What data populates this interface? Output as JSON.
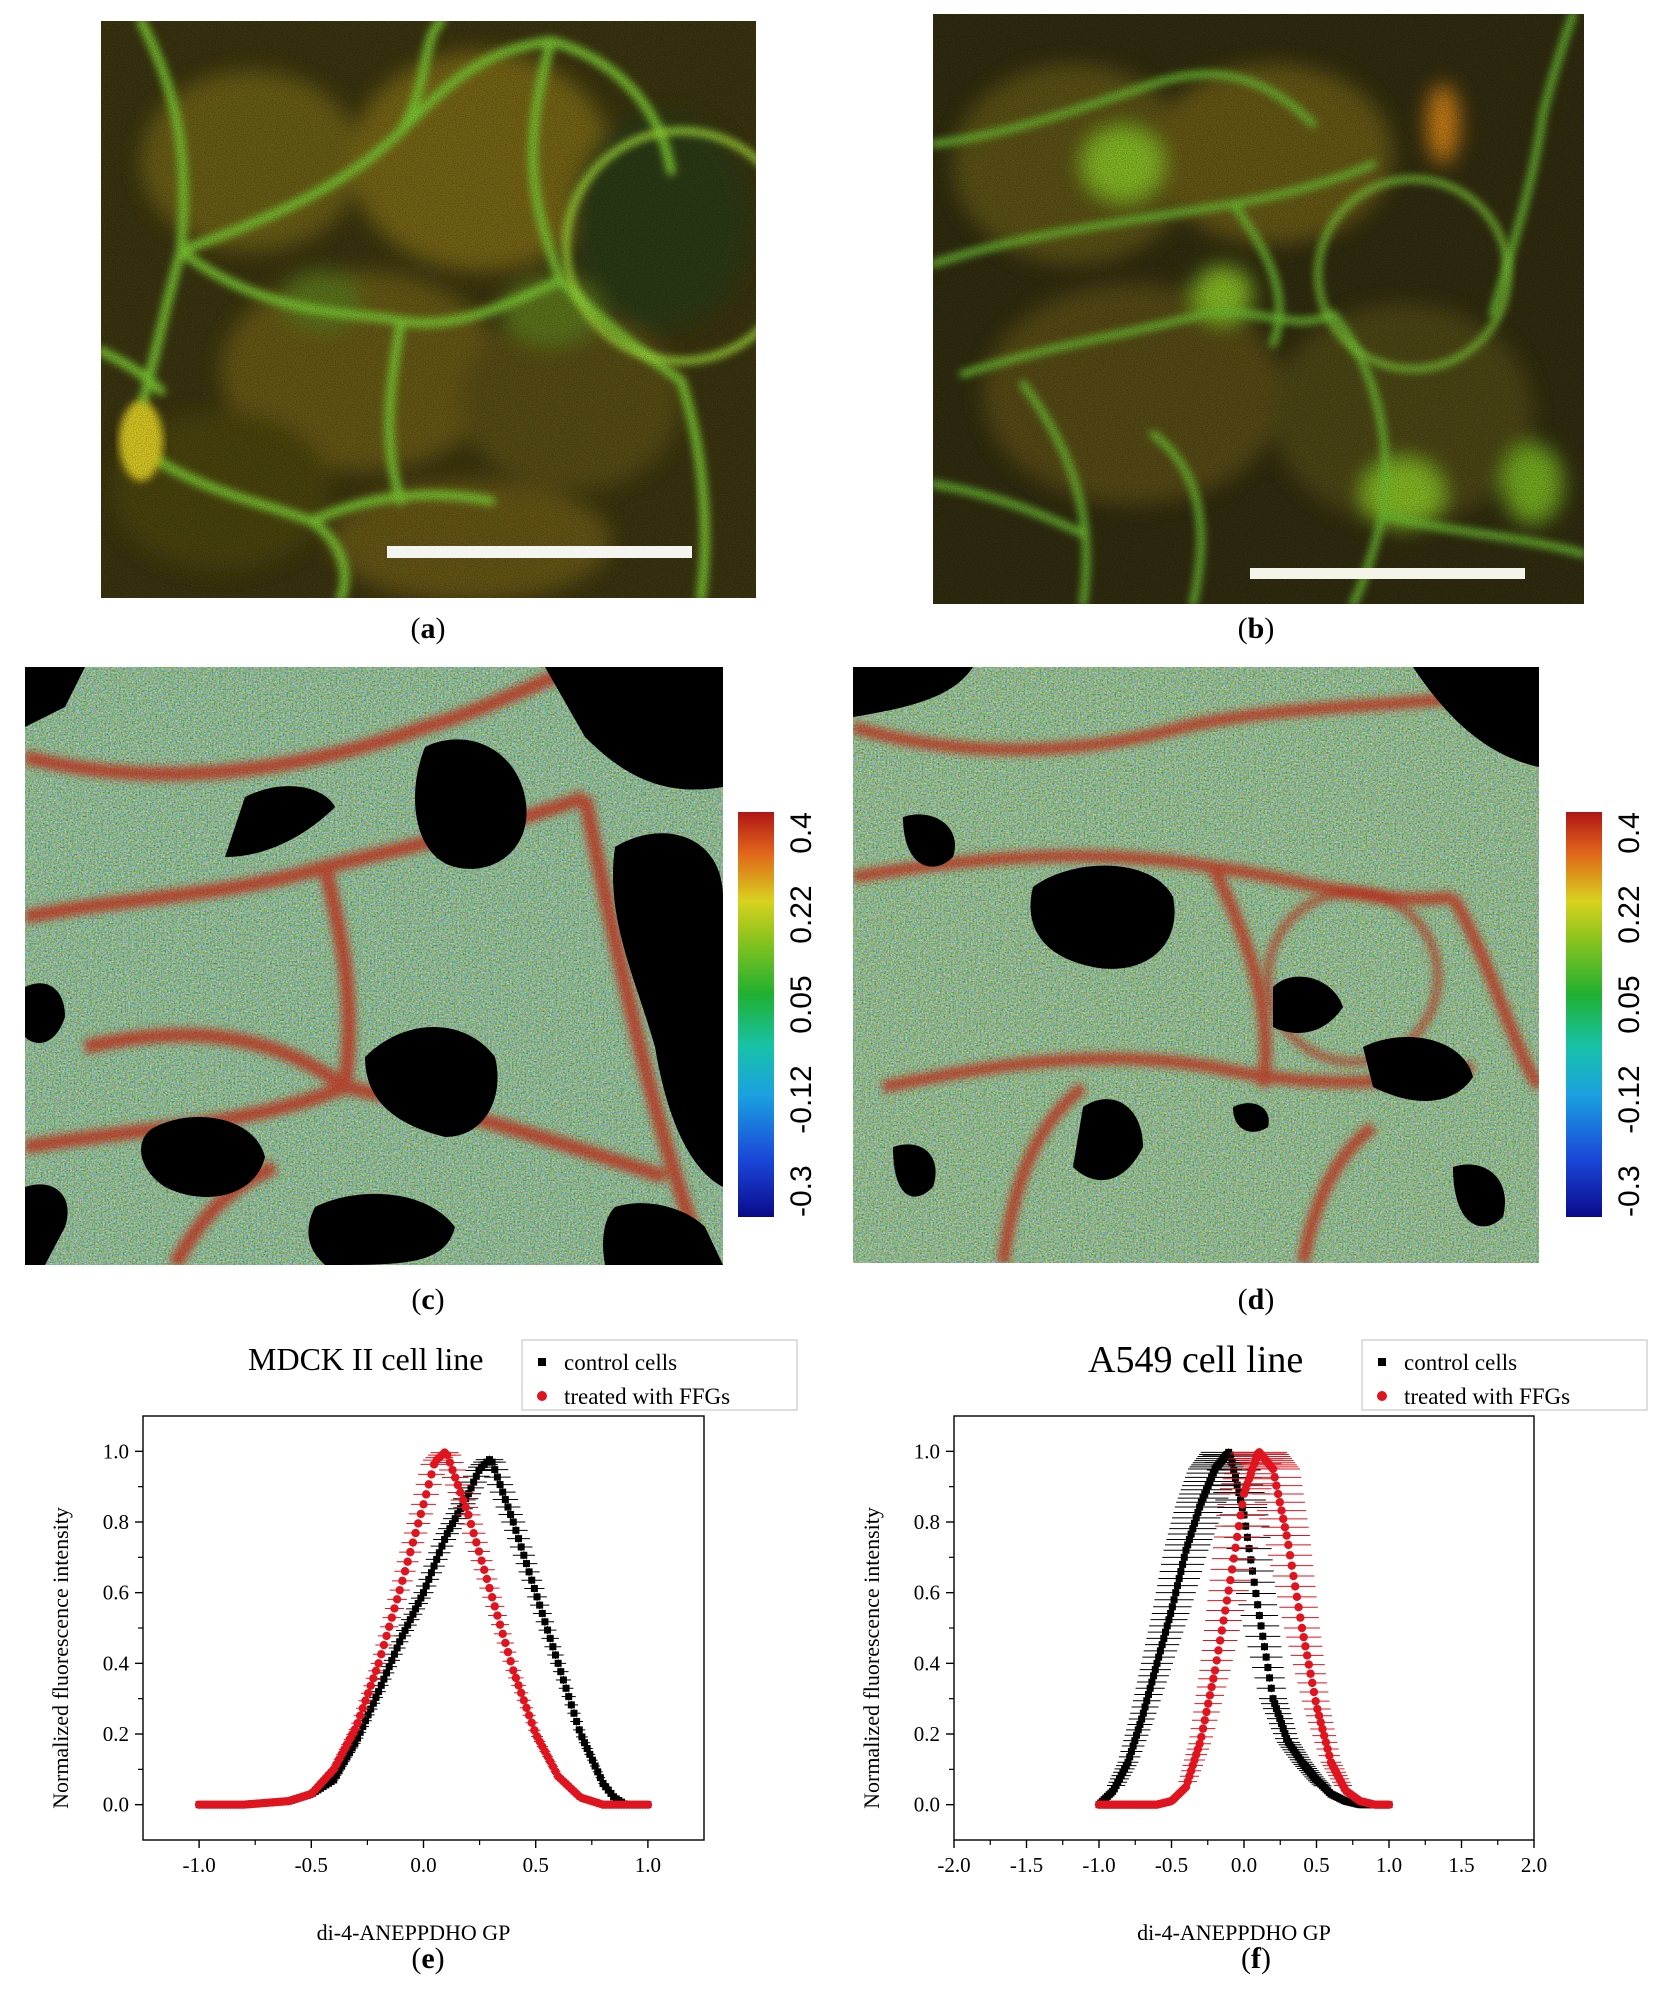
{
  "panels": {
    "a": {
      "label": "a"
    },
    "b": {
      "label": "b"
    },
    "c": {
      "label": "c"
    },
    "d": {
      "label": "d"
    },
    "e": {
      "label": "e"
    },
    "f": {
      "label": "f"
    }
  },
  "colorbar": {
    "ticks": [
      "-0.3",
      "-0.12",
      "0.05",
      "0.22",
      "0.4"
    ],
    "colors": [
      "#0a0a8c",
      "#1a46d8",
      "#18c2a8",
      "#20b030",
      "#d8d21e",
      "#e0641a",
      "#b01616"
    ]
  },
  "chart_data": [
    {
      "type": "scatter",
      "title": "MDCK II cell line",
      "xlabel": "di-4-ANEPPDHQ GP",
      "ylabel": "Normalized fluorescence intensity",
      "xlim": [
        -1.25,
        1.25
      ],
      "ylim": [
        -0.1,
        1.1
      ],
      "xticks": [
        "-1.0",
        "-0.5",
        "0.0",
        "0.5",
        "1.0"
      ],
      "yticks": [
        "0.0",
        "0.2",
        "0.4",
        "0.6",
        "0.8",
        "1.0"
      ],
      "legend_position": "top-right",
      "series": [
        {
          "name": "control cells",
          "color": "#000000",
          "marker": "square",
          "x": [
            -1.0,
            -0.8,
            -0.6,
            -0.5,
            -0.4,
            -0.3,
            -0.2,
            -0.1,
            0.0,
            0.1,
            0.2,
            0.25,
            0.3,
            0.4,
            0.5,
            0.6,
            0.7,
            0.8,
            0.85,
            0.9,
            1.0
          ],
          "y": [
            0.0,
            0.0,
            0.01,
            0.03,
            0.07,
            0.18,
            0.32,
            0.47,
            0.6,
            0.76,
            0.88,
            0.95,
            0.98,
            0.8,
            0.6,
            0.4,
            0.2,
            0.06,
            0.02,
            0.0,
            0.0
          ]
        },
        {
          "name": "treated with FFGs",
          "color": "#e0141e",
          "marker": "circle",
          "x": [
            -1.0,
            -0.8,
            -0.6,
            -0.5,
            -0.4,
            -0.3,
            -0.2,
            -0.1,
            0.0,
            0.05,
            0.1,
            0.2,
            0.3,
            0.4,
            0.5,
            0.6,
            0.7,
            0.8,
            0.9,
            1.0
          ],
          "y": [
            0.0,
            0.0,
            0.01,
            0.03,
            0.1,
            0.22,
            0.4,
            0.62,
            0.85,
            0.97,
            1.0,
            0.82,
            0.6,
            0.38,
            0.2,
            0.08,
            0.02,
            0.0,
            0.0,
            0.0
          ]
        }
      ]
    },
    {
      "type": "scatter",
      "title": "A549 cell line",
      "xlabel": "di-4-ANEPPDHQ GP",
      "ylabel": "Normalized fluorescence intensity",
      "xlim": [
        -2.0,
        2.0
      ],
      "ylim": [
        -0.1,
        1.1
      ],
      "xticks": [
        "-2.0",
        "-1.5",
        "-1.0",
        "-0.5",
        "0.0",
        "0.5",
        "1.0",
        "1.5",
        "2.0"
      ],
      "yticks": [
        "0.0",
        "0.2",
        "0.4",
        "0.6",
        "0.8",
        "1.0"
      ],
      "legend_position": "top-right",
      "series": [
        {
          "name": "control cells",
          "color": "#000000",
          "marker": "square",
          "x": [
            -1.0,
            -0.9,
            -0.8,
            -0.7,
            -0.6,
            -0.5,
            -0.4,
            -0.3,
            -0.2,
            -0.1,
            0.0,
            0.1,
            0.2,
            0.3,
            0.4,
            0.5,
            0.6,
            0.7,
            0.8,
            0.9,
            1.0
          ],
          "y": [
            0.0,
            0.04,
            0.12,
            0.25,
            0.4,
            0.55,
            0.72,
            0.85,
            0.95,
            1.0,
            0.82,
            0.55,
            0.3,
            0.18,
            0.12,
            0.07,
            0.03,
            0.01,
            0.0,
            0.0,
            0.0
          ]
        },
        {
          "name": "treated with FFGs",
          "color": "#e0141e",
          "marker": "circle",
          "x": [
            -1.0,
            -0.8,
            -0.6,
            -0.5,
            -0.4,
            -0.3,
            -0.2,
            -0.1,
            0.0,
            0.1,
            0.2,
            0.3,
            0.4,
            0.5,
            0.6,
            0.7,
            0.8,
            0.9,
            1.0
          ],
          "y": [
            0.0,
            0.0,
            0.0,
            0.01,
            0.05,
            0.18,
            0.38,
            0.62,
            0.88,
            1.0,
            0.95,
            0.75,
            0.5,
            0.28,
            0.12,
            0.04,
            0.01,
            0.0,
            0.0
          ]
        }
      ]
    }
  ]
}
